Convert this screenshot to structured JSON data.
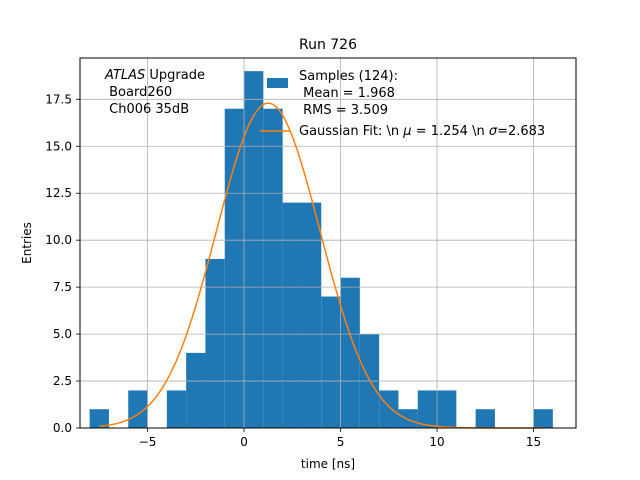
{
  "chart_data": {
    "type": "bar",
    "title": "Run 726",
    "xlabel": "time [ns]",
    "ylabel": "Entries",
    "xlim": [
      -8.5,
      17.2
    ],
    "ylim": [
      0,
      19.7
    ],
    "grid": true,
    "bin_width": 1.0,
    "bins": [
      {
        "x0": -8.0,
        "count": 1
      },
      {
        "x0": -6.0,
        "count": 2
      },
      {
        "x0": -4.0,
        "count": 2
      },
      {
        "x0": -3.0,
        "count": 4
      },
      {
        "x0": -2.0,
        "count": 9
      },
      {
        "x0": -1.0,
        "count": 17
      },
      {
        "x0": 0.0,
        "count": 19
      },
      {
        "x0": 1.0,
        "count": 17
      },
      {
        "x0": 2.0,
        "count": 12
      },
      {
        "x0": 3.0,
        "count": 12
      },
      {
        "x0": 4.0,
        "count": 7
      },
      {
        "x0": 5.0,
        "count": 8
      },
      {
        "x0": 6.0,
        "count": 5
      },
      {
        "x0": 7.0,
        "count": 2
      },
      {
        "x0": 8.0,
        "count": 1
      },
      {
        "x0": 9.0,
        "count": 2
      },
      {
        "x0": 10.0,
        "count": 2
      },
      {
        "x0": 12.0,
        "count": 1
      },
      {
        "x0": 15.0,
        "count": 1
      }
    ],
    "fit": {
      "mu": 1.254,
      "sigma": 2.683,
      "amplitude": 17.3,
      "x_range": [
        -7.5,
        15.5
      ]
    },
    "x_ticks": [
      -5,
      0,
      5,
      10,
      15
    ],
    "x_tick_labels": [
      "−5",
      "0",
      "5",
      "10",
      "15"
    ],
    "y_ticks": [
      0,
      2.5,
      5,
      7.5,
      10,
      12.5,
      15,
      17.5
    ],
    "y_tick_labels": [
      "0.0",
      "2.5",
      "5.0",
      "7.5",
      "10.0",
      "12.5",
      "15.0",
      "17.5"
    ],
    "annotation": {
      "line1_italic": "ATLAS",
      "line1_rest": " Upgrade",
      "line2": " Board260",
      "line3": " Ch006 35dB"
    },
    "legend": {
      "location": "top-right",
      "hist_label": [
        "Samples (124):",
        " Mean = 1.968",
        " RMS = 3.509"
      ],
      "fit_label": {
        "prefix": "Gaussian Fit: \\n ",
        "mu_symbol": "μ",
        "mu_text": " = 1.254 \\n ",
        "sigma_symbol": "σ",
        "sigma_text": "=2.683"
      }
    },
    "colors": {
      "bars": "#1f77b4",
      "fit": "#ff7f0e",
      "grid": "#b0b0b0",
      "axes": "#000000"
    }
  }
}
